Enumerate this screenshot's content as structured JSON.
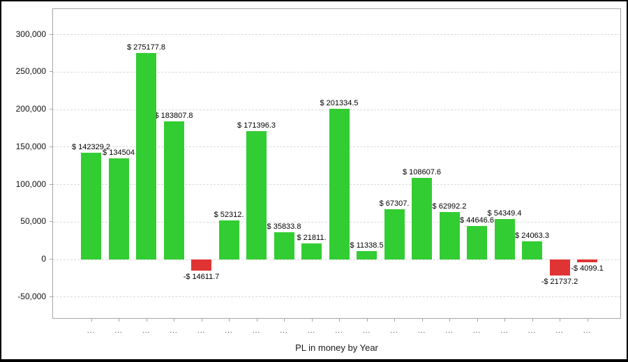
{
  "window": {
    "background": "#ffffff",
    "border_color": "#000000"
  },
  "chart_data": {
    "type": "bar",
    "title": "PL in money by Year",
    "categories": [
      "...",
      "...",
      "...",
      "...",
      "...",
      "...",
      "...",
      "...",
      "...",
      "...",
      "...",
      "...",
      "...",
      "...",
      "...",
      "...",
      "...",
      "...",
      "..."
    ],
    "values": [
      142329.2,
      134504,
      275177.8,
      183807.8,
      -14611.7,
      52312,
      171396.3,
      35833.8,
      21811,
      201334.5,
      11338.5,
      67307,
      108607.6,
      62992.2,
      44646.6,
      54349.4,
      24063.3,
      -21737.2,
      -4099.1
    ],
    "bar_labels": [
      "$ 142329.2",
      "$ 134504",
      "$ 275177.8",
      "$ 183807.8",
      "-$ 14611.7",
      "$ 52312.",
      "$ 171396.3",
      "$ 35833.8",
      "$ 21811.",
      "$ 201334.5",
      "$ 11338.5",
      "$ 67307.",
      "$ 108607.6",
      "$ 62992.2",
      "$ 44646.6",
      "$ 54349.4",
      "$ 24063.3",
      "-$ 21737.2",
      "-$ 4099.1"
    ],
    "positive_color": "#32cd32",
    "negative_color": "#e03333",
    "y_ticks": [
      300000,
      250000,
      200000,
      150000,
      100000,
      50000,
      0,
      -50000
    ],
    "y_tick_labels": [
      "300,000",
      "250,000",
      "200,000",
      "150,000",
      "100,000",
      "50,000",
      "0",
      "-50,000"
    ],
    "ylim": [
      -80000,
      334000
    ],
    "grid": true,
    "gridline_color": "#d9d9d9",
    "legend": false
  }
}
